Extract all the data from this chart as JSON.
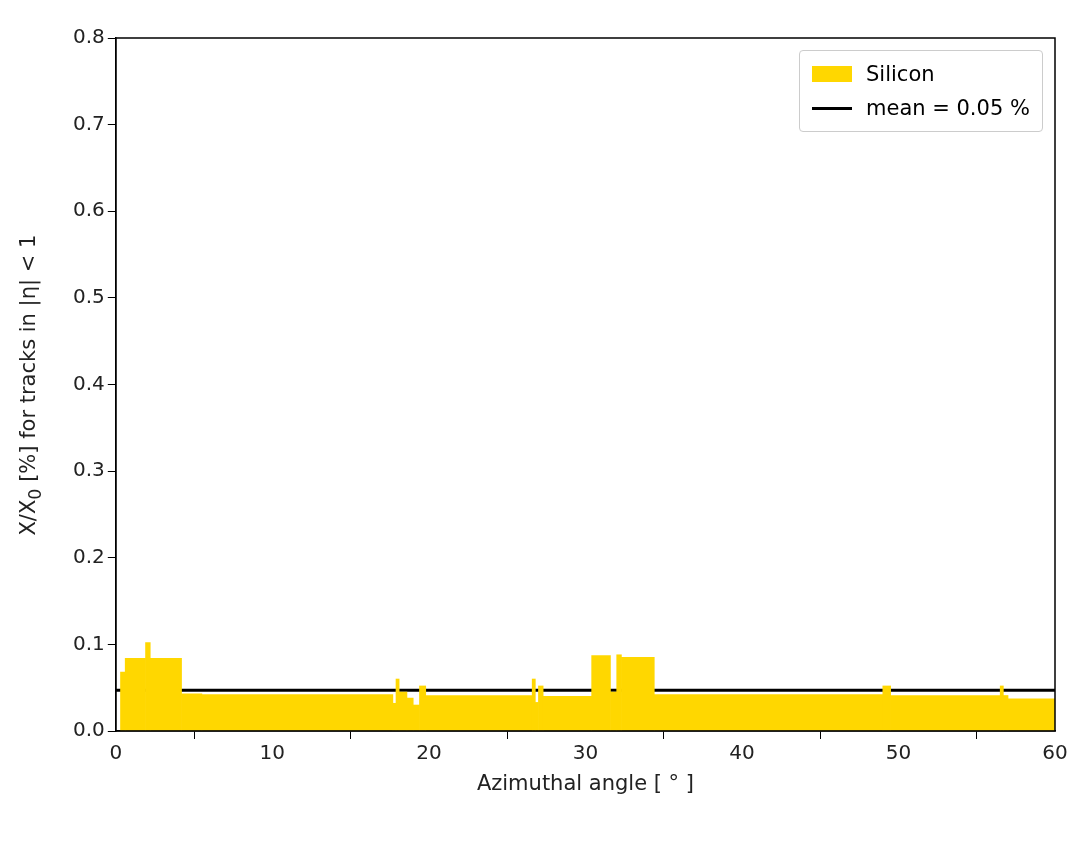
{
  "chart_data": {
    "type": "histogram",
    "xlabel": "Azimuthal angle [ ° ]",
    "ylabel": "X/X$_{0}$ [%] for tracks in |η| < 1",
    "bins": [
      0.3,
      0.6,
      1.9,
      2.2,
      4.2,
      5.5,
      17.7,
      17.9,
      18.1,
      18.6,
      19.0,
      19.4,
      19.8,
      26.6,
      26.8,
      27.0,
      27.3,
      30.4,
      31.6,
      32.0,
      32.3,
      34.4,
      49.0,
      49.5,
      56.5,
      56.7,
      57.0,
      60
    ],
    "series": [
      {
        "name": "Silicon",
        "color": "#ffd700",
        "values": [
          0.068,
          0.084,
          0.102,
          0.084,
          0.043,
          0.042,
          0.032,
          0.06,
          0.045,
          0.038,
          0.03,
          0.052,
          0.041,
          0.06,
          0.033,
          0.052,
          0.04,
          0.087,
          0.045,
          0.088,
          0.085,
          0.042,
          0.052,
          0.041,
          0.052,
          0.041,
          0.037
        ]
      }
    ],
    "ref_lines": [
      {
        "axis": "y",
        "value": 0.047,
        "label": "mean = 0.05 %",
        "color": "#000000",
        "line_style": "solid"
      }
    ],
    "xlim": [
      0,
      60
    ],
    "xticks": [
      0,
      10,
      20,
      30,
      40,
      50,
      60
    ],
    "ylim": [
      0,
      0.8
    ],
    "yticks": [
      {
        "value": 0,
        "label": "0.0"
      },
      0.1,
      0.2,
      0.3,
      0.4,
      0.5,
      0.6,
      0.7,
      0.8
    ],
    "legend": "top right"
  }
}
